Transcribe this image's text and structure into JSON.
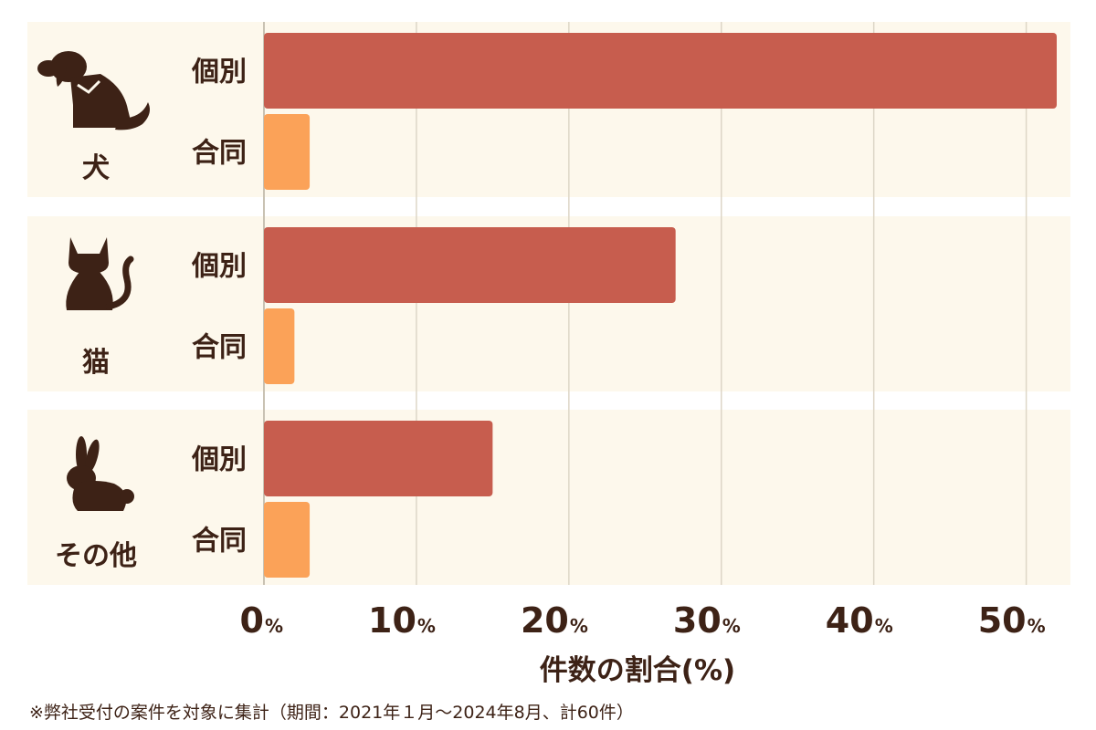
{
  "chart_data": {
    "type": "bar",
    "orientation": "horizontal",
    "groups": [
      {
        "label": "犬",
        "icon": "dog-icon",
        "bars": [
          {
            "label": "個別",
            "value": 52
          },
          {
            "label": "合同",
            "value": 3
          }
        ]
      },
      {
        "label": "猫",
        "icon": "cat-icon",
        "bars": [
          {
            "label": "個別",
            "value": 27
          },
          {
            "label": "合同",
            "value": 2
          }
        ]
      },
      {
        "label": "その他",
        "icon": "rabbit-icon",
        "bars": [
          {
            "label": "個別",
            "value": 15
          },
          {
            "label": "合同",
            "value": 3
          }
        ]
      }
    ],
    "x_ticks": [
      "0",
      "10",
      "20",
      "30",
      "40",
      "50"
    ],
    "tick_unit": "%",
    "xlabel": "件数の割合(%)",
    "xlim": [
      0,
      52
    ],
    "grid": true,
    "colors": {
      "個別": "#c75d4e",
      "合同": "#fba258",
      "band": "#fdf8ec",
      "text": "#3d2216"
    }
  },
  "footnote": "※弊社受付の案件を対象に集計（期間：2021年１月〜2024年8月、計60件）"
}
